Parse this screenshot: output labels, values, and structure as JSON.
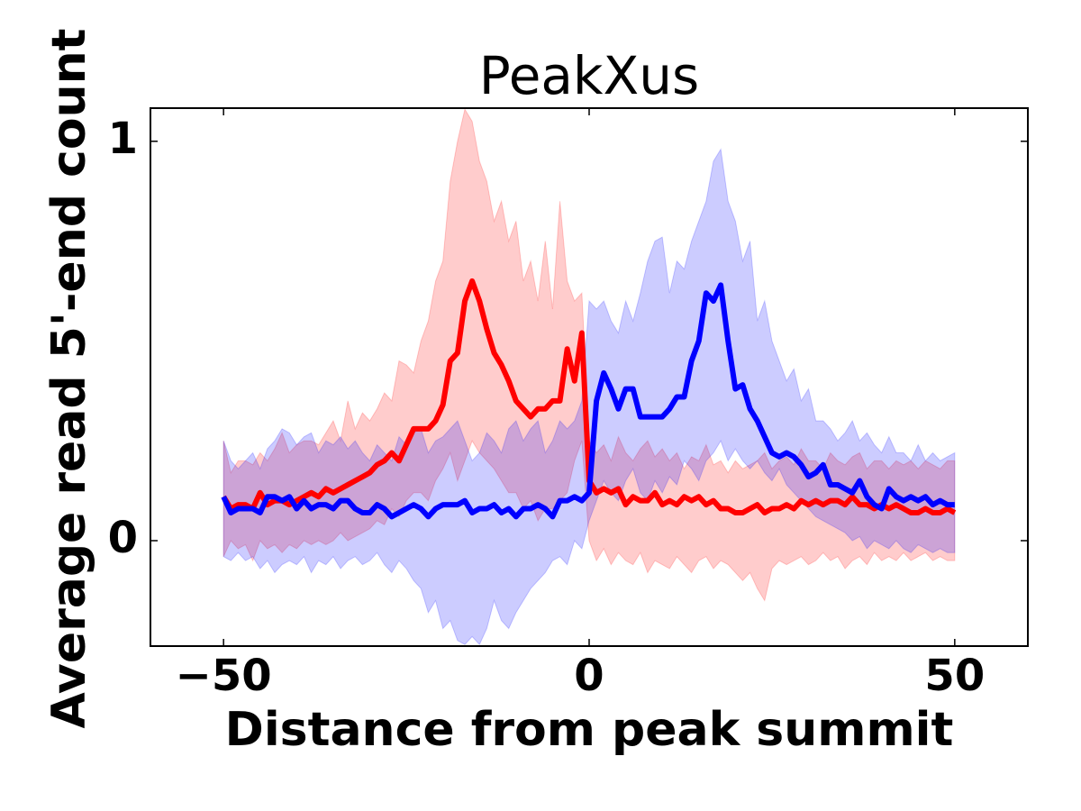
{
  "chart_data": {
    "type": "line",
    "title": "PeakXus",
    "x_label": "Distance from peak summit",
    "y_label": "Average read 5'-end count",
    "xlim": [
      -60,
      60
    ],
    "ylim": [
      -0.264,
      1.083
    ],
    "xticks": [
      {
        "value": -50,
        "label": "−50"
      },
      0,
      50
    ],
    "yticks": [
      0,
      1
    ],
    "x": [
      -50,
      -49,
      -48,
      -47,
      -46,
      -45,
      -44,
      -43,
      -42,
      -41,
      -40,
      -39,
      -38,
      -37,
      -36,
      -35,
      -34,
      -33,
      -32,
      -31,
      -30,
      -29,
      -28,
      -27,
      -26,
      -25,
      -24,
      -23,
      -22,
      -21,
      -20,
      -19,
      -18,
      -17,
      -16,
      -15,
      -14,
      -13,
      -12,
      -11,
      -10,
      -9,
      -8,
      -7,
      -6,
      -5,
      -4,
      -3,
      -2,
      -1,
      0,
      1,
      2,
      3,
      4,
      5,
      6,
      7,
      8,
      9,
      10,
      11,
      12,
      13,
      14,
      15,
      16,
      17,
      18,
      19,
      20,
      21,
      22,
      23,
      24,
      25,
      26,
      27,
      28,
      29,
      30,
      31,
      32,
      33,
      34,
      35,
      36,
      37,
      38,
      39,
      40,
      41,
      42,
      43,
      44,
      45,
      46,
      47,
      48,
      49,
      50
    ],
    "series": [
      {
        "color": "#ff0000",
        "values": [
          0.11,
          0.08,
          0.09,
          0.09,
          0.08,
          0.12,
          0.09,
          0.1,
          0.1,
          0.09,
          0.1,
          0.11,
          0.12,
          0.11,
          0.13,
          0.12,
          0.13,
          0.14,
          0.15,
          0.16,
          0.17,
          0.19,
          0.2,
          0.22,
          0.2,
          0.24,
          0.28,
          0.28,
          0.28,
          0.3,
          0.34,
          0.45,
          0.47,
          0.6,
          0.65,
          0.6,
          0.53,
          0.47,
          0.44,
          0.4,
          0.35,
          0.33,
          0.31,
          0.33,
          0.33,
          0.35,
          0.35,
          0.48,
          0.4,
          0.52,
          0.15,
          0.12,
          0.13,
          0.12,
          0.13,
          0.09,
          0.11,
          0.1,
          0.1,
          0.12,
          0.09,
          0.1,
          0.09,
          0.11,
          0.1,
          0.11,
          0.09,
          0.1,
          0.08,
          0.08,
          0.07,
          0.07,
          0.08,
          0.09,
          0.07,
          0.08,
          0.08,
          0.09,
          0.08,
          0.1,
          0.09,
          0.1,
          0.09,
          0.1,
          0.1,
          0.09,
          0.11,
          0.09,
          0.09,
          0.08,
          0.09,
          0.08,
          0.09,
          0.08,
          0.07,
          0.07,
          0.08,
          0.07,
          0.07,
          0.08,
          0.07
        ],
        "upper": [
          0.25,
          0.17,
          0.2,
          0.2,
          0.19,
          0.22,
          0.2,
          0.23,
          0.27,
          0.22,
          0.24,
          0.25,
          0.25,
          0.24,
          0.27,
          0.3,
          0.25,
          0.35,
          0.28,
          0.32,
          0.3,
          0.33,
          0.37,
          0.35,
          0.45,
          0.44,
          0.42,
          0.5,
          0.55,
          0.65,
          0.7,
          0.9,
          1.0,
          1.08,
          1.05,
          0.95,
          0.9,
          0.8,
          0.85,
          0.75,
          0.8,
          0.65,
          0.7,
          0.6,
          0.75,
          0.58,
          0.85,
          0.65,
          0.6,
          0.62,
          0.25,
          0.22,
          0.24,
          0.2,
          0.26,
          0.22,
          0.2,
          0.23,
          0.25,
          0.21,
          0.23,
          0.2,
          0.22,
          0.18,
          0.21,
          0.2,
          0.24,
          0.19,
          0.2,
          0.17,
          0.2,
          0.18,
          0.19,
          0.2,
          0.22,
          0.18,
          0.2,
          0.21,
          0.19,
          0.23,
          0.2,
          0.2,
          0.18,
          0.22,
          0.2,
          0.19,
          0.21,
          0.22,
          0.18,
          0.2,
          0.2,
          0.18,
          0.2,
          0.19,
          0.2,
          0.18,
          0.2,
          0.19,
          0.18,
          0.2,
          0.2
        ],
        "lower": [
          -0.04,
          0.0,
          -0.02,
          -0.01,
          -0.05,
          0.0,
          -0.02,
          -0.01,
          -0.03,
          -0.01,
          -0.02,
          0.0,
          -0.01,
          0.0,
          -0.01,
          0.0,
          0.02,
          0.0,
          0.01,
          0.02,
          0.03,
          0.05,
          0.04,
          0.08,
          0.06,
          0.1,
          0.12,
          0.12,
          0.1,
          0.15,
          0.18,
          0.22,
          0.15,
          0.2,
          0.25,
          0.22,
          0.2,
          0.18,
          0.15,
          0.12,
          0.12,
          0.08,
          0.1,
          0.05,
          0.08,
          0.08,
          0.1,
          0.12,
          0.2,
          0.25,
          0.0,
          -0.05,
          -0.02,
          -0.06,
          -0.03,
          -0.05,
          -0.06,
          -0.03,
          -0.08,
          -0.05,
          -0.06,
          -0.07,
          -0.04,
          -0.06,
          -0.08,
          -0.05,
          -0.04,
          -0.07,
          -0.05,
          -0.06,
          -0.08,
          -0.1,
          -0.08,
          -0.12,
          -0.15,
          -0.07,
          -0.05,
          -0.06,
          -0.05,
          -0.04,
          -0.06,
          -0.05,
          -0.03,
          -0.05,
          -0.04,
          -0.07,
          -0.05,
          -0.04,
          -0.06,
          -0.03,
          -0.05,
          -0.04,
          -0.05,
          -0.03,
          -0.05,
          -0.04,
          -0.03,
          -0.05,
          -0.04,
          -0.05,
          -0.05
        ]
      },
      {
        "color": "#0000ff",
        "values": [
          0.11,
          0.07,
          0.08,
          0.08,
          0.08,
          0.07,
          0.11,
          0.11,
          0.1,
          0.11,
          0.08,
          0.1,
          0.08,
          0.09,
          0.09,
          0.08,
          0.1,
          0.1,
          0.08,
          0.07,
          0.07,
          0.09,
          0.08,
          0.06,
          0.07,
          0.08,
          0.09,
          0.08,
          0.06,
          0.08,
          0.09,
          0.09,
          0.09,
          0.1,
          0.07,
          0.08,
          0.08,
          0.09,
          0.07,
          0.08,
          0.06,
          0.08,
          0.08,
          0.09,
          0.08,
          0.06,
          0.1,
          0.1,
          0.11,
          0.1,
          0.12,
          0.35,
          0.42,
          0.38,
          0.33,
          0.38,
          0.38,
          0.31,
          0.31,
          0.31,
          0.31,
          0.33,
          0.36,
          0.36,
          0.45,
          0.5,
          0.62,
          0.6,
          0.64,
          0.5,
          0.38,
          0.39,
          0.33,
          0.3,
          0.26,
          0.22,
          0.21,
          0.22,
          0.21,
          0.19,
          0.16,
          0.17,
          0.19,
          0.14,
          0.14,
          0.13,
          0.12,
          0.15,
          0.11,
          0.09,
          0.08,
          0.13,
          0.11,
          0.1,
          0.11,
          0.1,
          0.11,
          0.09,
          0.1,
          0.09,
          0.09
        ],
        "upper": [
          0.25,
          0.2,
          0.18,
          0.2,
          0.22,
          0.18,
          0.23,
          0.25,
          0.28,
          0.27,
          0.24,
          0.26,
          0.27,
          0.22,
          0.25,
          0.24,
          0.26,
          0.23,
          0.25,
          0.22,
          0.2,
          0.24,
          0.22,
          0.2,
          0.26,
          0.24,
          0.27,
          0.28,
          0.22,
          0.25,
          0.26,
          0.28,
          0.3,
          0.25,
          0.2,
          0.22,
          0.27,
          0.25,
          0.22,
          0.28,
          0.3,
          0.25,
          0.28,
          0.3,
          0.22,
          0.25,
          0.3,
          0.28,
          0.3,
          0.35,
          0.6,
          0.58,
          0.6,
          0.55,
          0.52,
          0.6,
          0.55,
          0.62,
          0.7,
          0.75,
          0.76,
          0.62,
          0.7,
          0.68,
          0.75,
          0.8,
          0.85,
          0.95,
          0.98,
          0.85,
          0.8,
          0.7,
          0.75,
          0.55,
          0.6,
          0.5,
          0.45,
          0.4,
          0.43,
          0.35,
          0.38,
          0.3,
          0.3,
          0.28,
          0.25,
          0.27,
          0.3,
          0.25,
          0.27,
          0.24,
          0.22,
          0.26,
          0.22,
          0.22,
          0.2,
          0.24,
          0.2,
          0.22,
          0.2,
          0.21,
          0.22
        ],
        "lower": [
          -0.04,
          -0.05,
          -0.03,
          -0.05,
          -0.04,
          -0.07,
          -0.05,
          -0.08,
          -0.06,
          -0.05,
          -0.06,
          -0.04,
          -0.08,
          -0.05,
          -0.06,
          -0.04,
          -0.07,
          -0.05,
          -0.04,
          -0.06,
          -0.05,
          -0.03,
          -0.06,
          -0.08,
          -0.05,
          -0.07,
          -0.1,
          -0.12,
          -0.18,
          -0.15,
          -0.22,
          -0.2,
          -0.25,
          -0.26,
          -0.24,
          -0.26,
          -0.22,
          -0.15,
          -0.2,
          -0.22,
          -0.18,
          -0.15,
          -0.12,
          -0.1,
          -0.08,
          -0.05,
          -0.04,
          -0.06,
          0.0,
          -0.02,
          0.05,
          0.1,
          0.15,
          0.12,
          0.1,
          0.15,
          0.18,
          0.12,
          0.1,
          0.15,
          0.12,
          0.16,
          0.14,
          0.2,
          0.18,
          0.15,
          0.2,
          0.22,
          0.25,
          0.2,
          0.23,
          0.2,
          0.18,
          0.2,
          0.17,
          0.15,
          0.18,
          0.14,
          0.12,
          0.1,
          0.08,
          0.06,
          0.05,
          0.04,
          0.03,
          0.02,
          0.0,
          0.01,
          -0.02,
          0.0,
          -0.01,
          -0.02,
          0.0,
          -0.02,
          -0.03,
          -0.01,
          -0.02,
          -0.03,
          -0.02,
          -0.03,
          -0.03
        ]
      }
    ]
  }
}
